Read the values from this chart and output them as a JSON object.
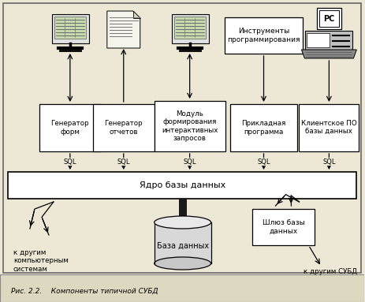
{
  "title": "Рис. 2.2.    Компоненты типичной СУБД",
  "bg_color": "#ede8d5",
  "caption_bg": "#ddd8c0",
  "figsize": [
    4.63,
    3.83
  ],
  "dpi": 100,
  "core_label": "Ядро базы данных",
  "module_labels": [
    "Генератор\nформ",
    "Генератор\nотчетов",
    "Модуль\nформирования\nинтерактивных\nзапросов",
    "Прикладная\nпрограмма",
    "Клиентское ПО\nбазы данных"
  ],
  "tools_label": "Инструменты\nпрограммирования",
  "gateway_label": "Шлюз базы\nданных",
  "db_label": "База данных",
  "left_text": "к другим\nкомпьютерным\nсистемам",
  "right_text": "к другим СУБД"
}
